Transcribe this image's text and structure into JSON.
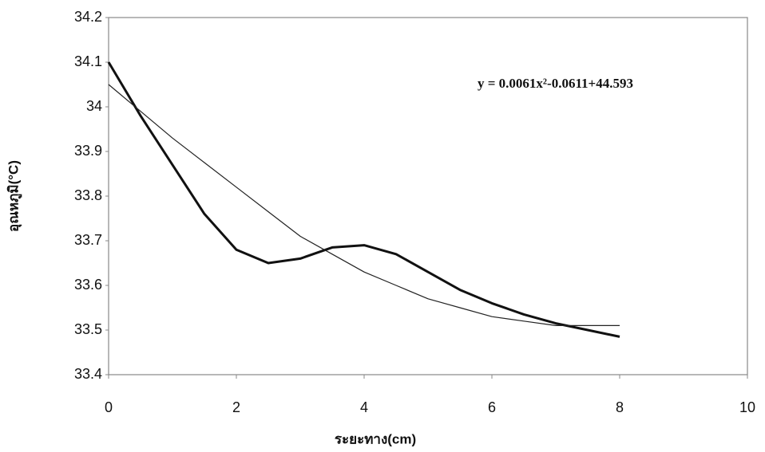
{
  "chart_data": {
    "type": "line",
    "x_label": "ระยะทาง(cm)",
    "y_label": "อุณหภูมิ(°C)",
    "annotation": "y = 0.0061x²-0.0611+44.593",
    "x": [
      0,
      0.5,
      1,
      1.5,
      2,
      2.5,
      3,
      3.5,
      4,
      4.5,
      5,
      5.5,
      6,
      6.5,
      7,
      7.5,
      8
    ],
    "series": [
      {
        "color": "#111111",
        "width": 3,
        "values": [
          34.1,
          33.98,
          33.87,
          33.76,
          33.68,
          33.65,
          33.66,
          33.685,
          33.69,
          33.67,
          33.63,
          33.59,
          33.56,
          33.535,
          33.515,
          33.5,
          33.485
        ]
      },
      {
        "color": "#222222",
        "width": 1.2,
        "values": [
          34.05,
          33.99,
          33.93,
          33.875,
          33.82,
          33.765,
          33.71,
          33.67,
          33.63,
          33.6,
          33.57,
          33.55,
          33.53,
          33.52,
          33.51,
          33.51,
          33.51
        ]
      }
    ],
    "xlim": [
      0,
      10
    ],
    "xticks": [
      0,
      2,
      4,
      6,
      8,
      10
    ],
    "ylim": [
      33.4,
      34.2
    ],
    "yticks": [
      33.4,
      33.5,
      33.6,
      33.7,
      33.8,
      33.9,
      34,
      34.1,
      34.2
    ],
    "grid": false
  }
}
